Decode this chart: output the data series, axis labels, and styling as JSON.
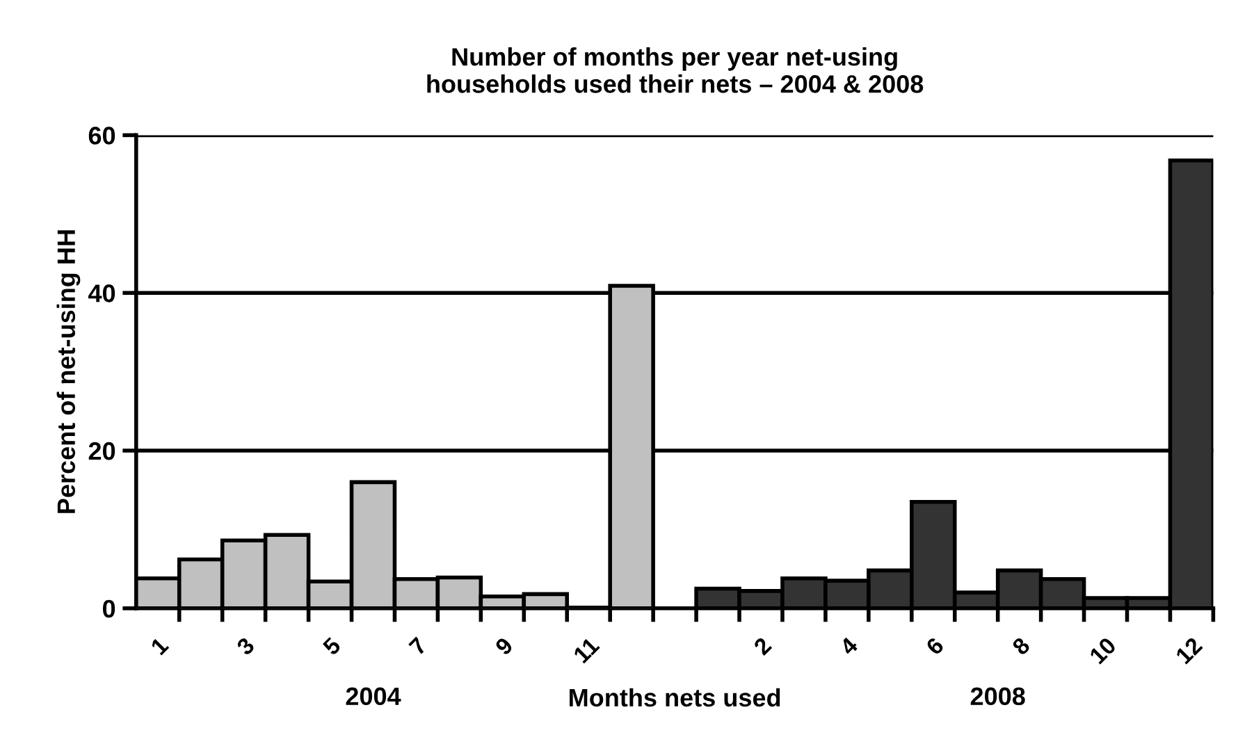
{
  "chart_data": {
    "type": "bar",
    "title": "Number of months per year net-using\nhouseholds used their nets – 2004 & 2008",
    "xlabel": "Months nets used",
    "ylabel": "Percent of net-using HH",
    "categories": [
      "1",
      null,
      "3",
      null,
      "5",
      null,
      "7",
      null,
      "9",
      null,
      "11",
      null,
      null,
      null,
      "2",
      null,
      "4",
      null,
      "6",
      null,
      "8",
      null,
      "10",
      null,
      "12"
    ],
    "series": [
      {
        "color": "#c0c0c0",
        "values": [
          3.8,
          6.2,
          8.6,
          9.3,
          3.4,
          16.0,
          3.7,
          3.9,
          1.5,
          1.8,
          0.1,
          40.9,
          null,
          null,
          null,
          null,
          null,
          null,
          null,
          null,
          null,
          null,
          null,
          null,
          null
        ]
      },
      {
        "color": "#333333",
        "values": [
          null,
          null,
          null,
          null,
          null,
          null,
          null,
          null,
          null,
          null,
          null,
          null,
          null,
          2.5,
          2.2,
          3.8,
          3.5,
          4.8,
          13.5,
          2.0,
          4.8,
          3.7,
          1.3,
          1.3,
          56.8
        ]
      }
    ],
    "annotations": [
      "2004",
      "2008"
    ],
    "ylim": [
      0,
      60
    ],
    "yticks": [
      0,
      20,
      40,
      60
    ],
    "grid": "y",
    "legend": false
  }
}
